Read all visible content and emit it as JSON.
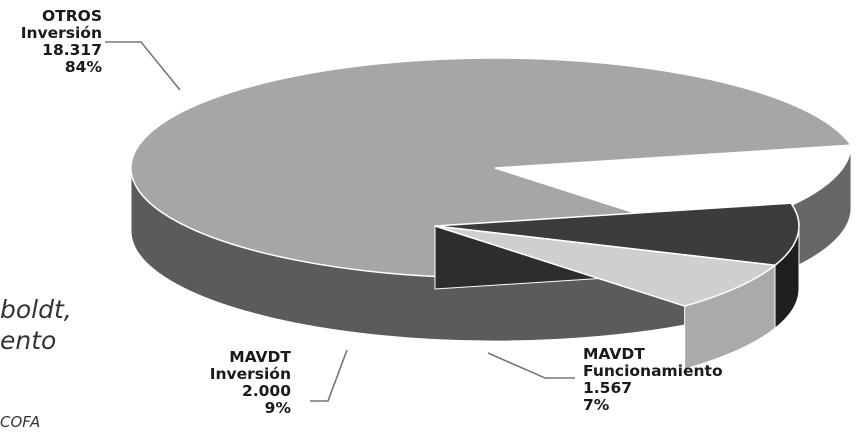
{
  "chart_data": {
    "type": "pie",
    "title": "",
    "slices": [
      {
        "line1": "OTROS",
        "line2": "Inversión",
        "value_text": "18.317",
        "pct_text": "84%",
        "value": 18317,
        "percent": 84,
        "color": "#a6a6a6"
      },
      {
        "line1": "MAVDT",
        "line2": "Inversión",
        "value_text": "2.000",
        "pct_text": "9%",
        "value": 2000,
        "percent": 9,
        "color": "#3c3c3c"
      },
      {
        "line1": "MAVDT",
        "line2": "Funcionamiento",
        "value_text": "1.567",
        "pct_text": "7%",
        "value": 1567,
        "percent": 7,
        "color": "#cfcfcf"
      }
    ]
  },
  "page_fragments": {
    "line1": "boldt,",
    "line2": "ento",
    "line3": "COFA"
  }
}
